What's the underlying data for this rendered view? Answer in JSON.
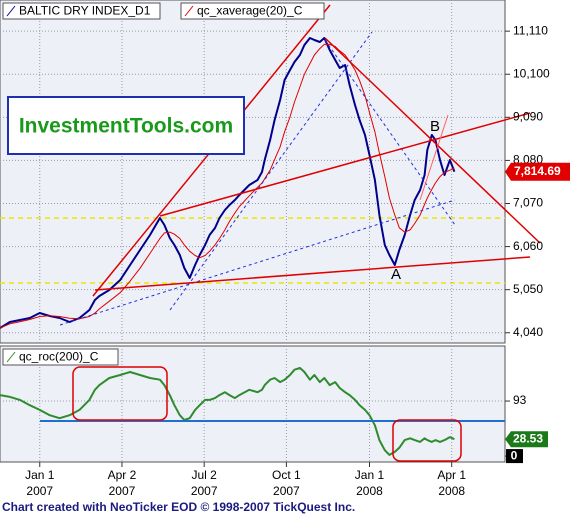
{
  "chart_data": [
    {
      "type": "line",
      "x": [
        -44,
        -33,
        -22,
        -11,
        0,
        11,
        22,
        33,
        44,
        55,
        61,
        66,
        77,
        89,
        100,
        111,
        122,
        133,
        138,
        144,
        149,
        155,
        160,
        166,
        172,
        177,
        183,
        188,
        194,
        199,
        205,
        210,
        216,
        221,
        232,
        241,
        246,
        249,
        255,
        260,
        266,
        271,
        277,
        282,
        288,
        293,
        299,
        304,
        310,
        315,
        321,
        327,
        332,
        338,
        343,
        349,
        354,
        360,
        365,
        371,
        376,
        382,
        387,
        393,
        398,
        404,
        410,
        415,
        421,
        426,
        429,
        434,
        438,
        443,
        448,
        454,
        459
      ],
      "xlim": [
        -44,
        515
      ],
      "ylim": [
        3800,
        11840
      ],
      "yticks": [
        {
          "value": 11110,
          "label": "11,110"
        },
        {
          "value": 10100,
          "label": "10,100"
        },
        {
          "value": 9090,
          "label": "9,090"
        },
        {
          "value": 8080,
          "label": "8,080"
        },
        {
          "value": 7070,
          "label": "7,070"
        },
        {
          "value": 6060,
          "label": "6,060"
        },
        {
          "value": 5050,
          "label": "5,050"
        },
        {
          "value": 4040,
          "label": "4,040"
        }
      ],
      "grid": true,
      "series": [
        {
          "name": "BALTIC DRY INDEX_D1",
          "color": "#00008b",
          "last_label": "7,814.69",
          "values": [
            4152,
            4292,
            4339,
            4386,
            4503,
            4433,
            4386,
            4292,
            4386,
            4574,
            4808,
            4902,
            5042,
            5277,
            5628,
            5980,
            6332,
            6730,
            6566,
            6261,
            6097,
            5863,
            5558,
            5324,
            5628,
            5863,
            6097,
            6332,
            6496,
            6730,
            6918,
            7035,
            7152,
            7269,
            7504,
            7621,
            7808,
            8090,
            8558,
            9027,
            9496,
            9965,
            10199,
            10387,
            10551,
            10785,
            10949,
            10902,
            10856,
            10949,
            10668,
            10434,
            10246,
            10316,
            9848,
            9379,
            9027,
            8676,
            8207,
            7621,
            6800,
            6097,
            5863,
            5628,
            5980,
            6332,
            6800,
            7152,
            7386,
            7738,
            8324,
            8676,
            8558,
            8090,
            7738,
            8090,
            7814.69
          ]
        },
        {
          "name": "qc_xaverage(20)_C",
          "color": "#e00000",
          "values": [
            4150,
            4250,
            4300,
            4350,
            4420,
            4440,
            4420,
            4380,
            4370,
            4420,
            4500,
            4600,
            4780,
            4980,
            5250,
            5550,
            5900,
            6250,
            6380,
            6400,
            6350,
            6250,
            6100,
            5950,
            5850,
            5800,
            5850,
            5950,
            6100,
            6250,
            6450,
            6650,
            6850,
            7000,
            7250,
            7450,
            7550,
            7650,
            7850,
            8100,
            8400,
            8750,
            9100,
            9450,
            9800,
            10100,
            10350,
            10550,
            10700,
            10800,
            10800,
            10750,
            10650,
            10550,
            10400,
            10200,
            9950,
            9600,
            9200,
            8750,
            8250,
            7700,
            7200,
            6800,
            6500,
            6400,
            6450,
            6600,
            6800,
            7050,
            7200,
            7400,
            7550,
            7700,
            7800,
            7850,
            7900
          ]
        }
      ],
      "annotations": [
        "A",
        "B"
      ],
      "watermark": "InvestmentTools.com"
    },
    {
      "type": "line",
      "x": [
        -44,
        -33,
        -22,
        -11,
        0,
        11,
        22,
        33,
        44,
        55,
        61,
        66,
        77,
        89,
        100,
        111,
        122,
        133,
        138,
        144,
        149,
        155,
        160,
        166,
        172,
        177,
        183,
        188,
        194,
        199,
        205,
        210,
        216,
        221,
        232,
        241,
        246,
        249,
        255,
        260,
        266,
        271,
        277,
        282,
        288,
        293,
        299,
        304,
        310,
        315,
        321,
        327,
        332,
        338,
        343,
        349,
        354,
        360,
        365,
        371,
        376,
        382,
        387,
        393,
        398,
        404,
        410,
        415,
        421,
        426,
        429,
        434,
        438,
        443,
        448,
        454,
        459
      ],
      "xlim": [
        -44,
        515
      ],
      "xticks": [
        {
          "value": 0,
          "label": "Jan 1",
          "year": "2007"
        },
        {
          "value": 91,
          "label": "Apr 2",
          "year": "2007"
        },
        {
          "value": 182,
          "label": "Jul 2",
          "year": "2007"
        },
        {
          "value": 273,
          "label": "Oct 1",
          "year": "2007"
        },
        {
          "value": 365,
          "label": "Jan 1",
          "year": "2008"
        },
        {
          "value": 456,
          "label": "Apr 1",
          "year": "2008"
        }
      ],
      "ylim": [
        -10,
        186
      ],
      "yticks": [
        93,
        0
      ],
      "grid": true,
      "series": [
        {
          "name": "qc_roc(200)_C",
          "color": "#2e8b2e",
          "values": [
            103,
            100,
            95,
            86,
            78,
            69,
            64,
            69,
            78,
            95,
            112,
            120,
            132,
            137,
            142,
            137,
            132,
            129,
            120,
            103,
            86,
            69,
            61,
            64,
            78,
            86,
            95,
            95,
            98,
            103,
            108,
            103,
            98,
            103,
            112,
            108,
            112,
            120,
            129,
            132,
            125,
            129,
            137,
            146,
            149,
            142,
            129,
            137,
            125,
            132,
            120,
            125,
            115,
            108,
            103,
            95,
            86,
            78,
            69,
            52,
            27,
            10,
            2,
            7,
            14,
            27,
            30,
            27,
            24,
            30,
            27,
            24,
            27,
            24,
            27,
            32,
            28.53
          ]
        }
      ]
    }
  ],
  "footer": "Chart created with NeoTicker EOD © 1998-2007 TickQuest Inc."
}
